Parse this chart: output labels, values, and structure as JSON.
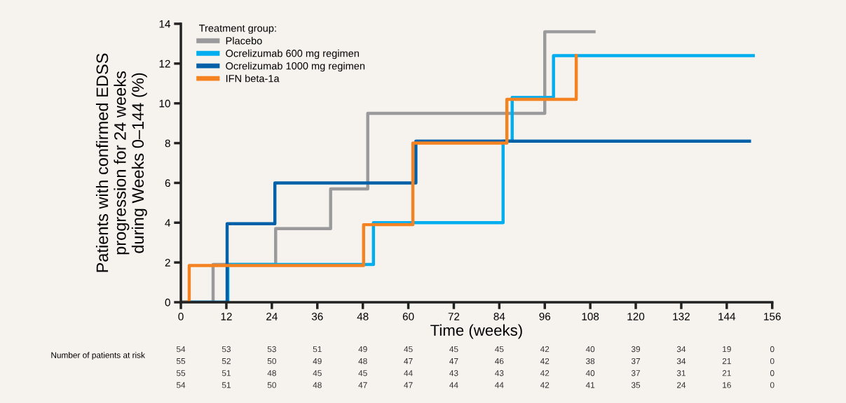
{
  "chart_data": {
    "type": "step",
    "xlabel": "Time (weeks)",
    "ylabel": "Patients with confirmed EDSS\nprogression for 24 weeks\nduring Weeks 0–144 (%)",
    "legend_title": "Treatment group:",
    "legend": "top left",
    "grid": false,
    "xlim": [
      0,
      156
    ],
    "xticks": [
      0,
      12,
      24,
      36,
      48,
      60,
      72,
      84,
      96,
      108,
      120,
      132,
      144,
      156
    ],
    "ylim": [
      0,
      14
    ],
    "yticks": [
      0,
      2,
      4,
      6,
      8,
      10,
      12,
      14
    ],
    "series": [
      {
        "name": "Placebo",
        "color": "#9a9a9c",
        "x": [
          0,
          8.5,
          25,
          39.5,
          49.3,
          96,
          109
        ],
        "values": [
          0,
          1.9,
          3.7,
          5.7,
          9.5,
          13.6,
          13.6
        ]
      },
      {
        "name": "Ocrelizumab 600 mg regimen",
        "color": "#00aeef",
        "x": [
          0,
          12.4,
          50.8,
          85,
          87.4,
          98.3,
          151
        ],
        "values": [
          0,
          1.9,
          4.0,
          8.1,
          10.3,
          12.4,
          12.4
        ]
      },
      {
        "name": "Ocrelizumab 1000 mg regimen",
        "color": "#0060a8",
        "x": [
          0,
          12.2,
          24.8,
          62,
          150
        ],
        "values": [
          0,
          3.95,
          6.0,
          8.1,
          8.1
        ]
      },
      {
        "name": "IFN beta-1a",
        "color": "#f58220",
        "x": [
          0,
          2.2,
          48.2,
          61.2,
          86,
          104.3
        ],
        "values": [
          0,
          1.85,
          3.9,
          8.0,
          10.2,
          12.4
        ]
      }
    ],
    "annotations": [
      "Number of patients at risk",
      "54",
      "53",
      "53",
      "51",
      "49",
      "45",
      "45",
      "45",
      "42",
      "40",
      "39",
      "34",
      "19",
      "0",
      "55",
      "52",
      "50",
      "49",
      "48",
      "47",
      "47",
      "46",
      "42",
      "38",
      "37",
      "34",
      "21",
      "0",
      "55",
      "51",
      "48",
      "45",
      "45",
      "44",
      "43",
      "43",
      "42",
      "40",
      "37",
      "31",
      "21",
      "0",
      "54",
      "51",
      "50",
      "48",
      "47",
      "47",
      "44",
      "44",
      "42",
      "41",
      "35",
      "24",
      "16",
      "0"
    ]
  }
}
